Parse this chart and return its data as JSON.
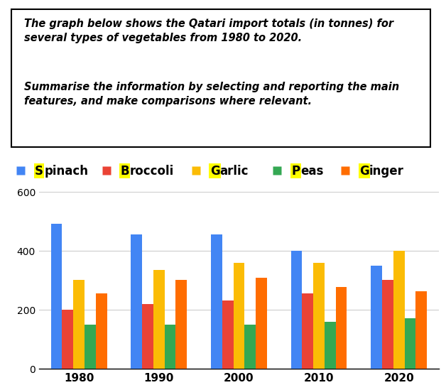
{
  "categories": [
    1980,
    1990,
    2000,
    2010,
    2020
  ],
  "series": {
    "Spinach": [
      490,
      455,
      455,
      400,
      348
    ],
    "Broccoli": [
      200,
      220,
      230,
      255,
      300
    ],
    "Garlic": [
      300,
      335,
      358,
      358,
      400
    ],
    "Peas": [
      150,
      150,
      150,
      160,
      170
    ],
    "Ginger": [
      255,
      300,
      308,
      278,
      262
    ]
  },
  "colors": {
    "Spinach": "#4285F4",
    "Broccoli": "#EA4335",
    "Garlic": "#FBBC05",
    "Peas": "#34A853",
    "Ginger": "#FF6D00"
  },
  "highlight_color": "#FFFF00",
  "ylim": [
    0,
    600
  ],
  "yticks": [
    0,
    200,
    400,
    600
  ],
  "text_line1": "The graph below shows the Qatari import totals (in tonnes) for",
  "text_line2": "several types of vegetables from 1980 to 2020.",
  "text_line3": "Summarise the information by selecting and reporting the main",
  "text_line4": "features, and make comparisons where relevant."
}
